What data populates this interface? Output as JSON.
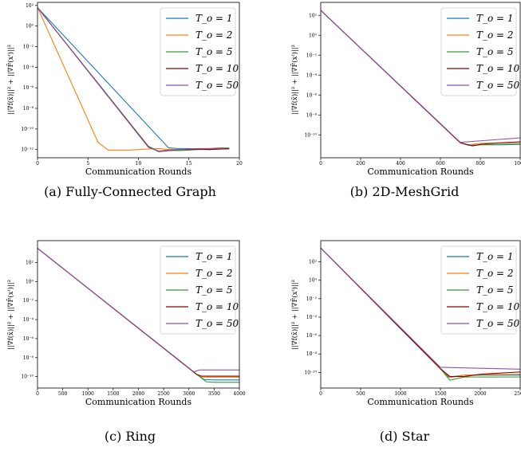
{
  "figure": {
    "colors": {
      "To=1": "#1f77b4",
      "To=2": "#ff7f0e",
      "To=5": "#2ca02c",
      "To=10": "#8b0000",
      "To=50": "#8c55a8"
    }
  },
  "chart_data": [
    {
      "type": "line",
      "caption": "(a) Fully-Connected Graph",
      "xlabel": "Communication Rounds",
      "ylabel": "||∇f(x̄)||² + ||∇F̄(xᵗ)||²",
      "xlim": [
        0,
        20
      ],
      "ylim_log10": [
        -12.8,
        2.3
      ],
      "xticks": [
        0,
        5,
        10,
        15,
        20
      ],
      "yticks_exp": [
        2,
        0,
        -2,
        -4,
        -6,
        -8,
        -10,
        -12
      ],
      "legend": "top-right",
      "series": [
        {
          "name": "To=1",
          "label": "T_o = 1",
          "x": [
            0,
            13,
            14,
            15,
            16,
            17,
            18,
            19
          ],
          "y_log10": [
            1.8,
            -11.85,
            -11.9,
            -11.9,
            -11.95,
            -11.9,
            -11.95,
            -11.9
          ]
        },
        {
          "name": "To=2",
          "label": "T_o = 2",
          "x": [
            0,
            6,
            7,
            8,
            9,
            10,
            12,
            13,
            14,
            16,
            18,
            19
          ],
          "y_log10": [
            1.8,
            -11.3,
            -12.05,
            -12.05,
            -12.05,
            -12.0,
            -11.9,
            -12.0,
            -12.0,
            -11.95,
            -11.95,
            -11.9
          ]
        },
        {
          "name": "To=5",
          "label": "T_o = 5",
          "x": [
            0,
            11,
            12,
            13,
            14,
            15,
            16,
            17,
            18,
            19
          ],
          "y_log10": [
            1.8,
            -11.7,
            -12.15,
            -12.1,
            -12.1,
            -12.05,
            -12.0,
            -12.0,
            -11.95,
            -11.95
          ]
        },
        {
          "name": "To=10",
          "label": "T_o = 10",
          "x": [
            0,
            11,
            12,
            13,
            14,
            15,
            16,
            17,
            18,
            19
          ],
          "y_log10": [
            1.8,
            -11.75,
            -12.2,
            -12.1,
            -12.0,
            -12.0,
            -11.95,
            -12.0,
            -11.95,
            -11.9
          ]
        },
        {
          "name": "To=50",
          "label": "T_o = 50",
          "x": [
            0,
            11,
            12,
            13,
            14,
            15,
            16,
            17,
            18,
            19
          ],
          "y_log10": [
            1.8,
            -11.8,
            -12.15,
            -12.05,
            -12.0,
            -11.95,
            -11.9,
            -11.9,
            -11.85,
            -11.85
          ]
        }
      ]
    },
    {
      "type": "line",
      "caption": "(b) 2D-MeshGrid",
      "xlabel": "Communication Rounds",
      "ylabel": "||∇f(x̄)||² + ||∇F̄(xᵗ)||²",
      "xlim": [
        0,
        1000
      ],
      "ylim_log10": [
        -12.3,
        3.3
      ],
      "xticks": [
        0,
        200,
        400,
        600,
        800,
        1000
      ],
      "yticks_exp": [
        2,
        0,
        -2,
        -4,
        -6,
        -8,
        -10
      ],
      "legend": "top-right",
      "series": [
        {
          "name": "To=1",
          "label": "T_o = 1",
          "x": [
            0,
            700,
            740,
            800,
            900,
            1000
          ],
          "y_log10": [
            2.5,
            -10.8,
            -11.05,
            -11.0,
            -11.0,
            -10.95
          ]
        },
        {
          "name": "To=2",
          "label": "T_o = 2",
          "x": [
            0,
            700,
            740,
            800,
            900,
            1000
          ],
          "y_log10": [
            2.5,
            -10.8,
            -11.0,
            -10.85,
            -10.8,
            -10.75
          ]
        },
        {
          "name": "To=5",
          "label": "T_o = 5",
          "x": [
            0,
            700,
            760,
            800,
            900,
            1000
          ],
          "y_log10": [
            2.5,
            -10.8,
            -11.1,
            -11.0,
            -10.95,
            -10.9
          ]
        },
        {
          "name": "To=10",
          "label": "T_o = 10",
          "x": [
            0,
            700,
            760,
            800,
            900,
            1000
          ],
          "y_log10": [
            2.5,
            -10.8,
            -11.1,
            -10.95,
            -10.8,
            -10.7
          ]
        },
        {
          "name": "To=50",
          "label": "T_o = 50",
          "x": [
            0,
            700,
            800,
            900,
            1000
          ],
          "y_log10": [
            2.5,
            -10.75,
            -10.6,
            -10.45,
            -10.3
          ]
        }
      ]
    },
    {
      "type": "line",
      "caption": "(c) Ring",
      "xlabel": "Communication Rounds",
      "ylabel": "||∇f(x̄)||² + ||∇F̄(xᵗ)||²",
      "xlim": [
        0,
        4000
      ],
      "ylim_log10": [
        -11.2,
        4.3
      ],
      "xticks": [
        0,
        500,
        1000,
        1500,
        2000,
        2500,
        3000,
        3500,
        4000
      ],
      "yticks_exp": [
        2,
        0,
        -2,
        -4,
        -6,
        -8,
        -10
      ],
      "legend": "top-right",
      "series": [
        {
          "name": "To=1",
          "label": "T_o = 1",
          "x": [
            0,
            3150,
            3300,
            3500,
            4000
          ],
          "y_log10": [
            3.5,
            -9.75,
            -10.3,
            -10.35,
            -10.35
          ]
        },
        {
          "name": "To=2",
          "label": "T_o = 2",
          "x": [
            0,
            3150,
            3250,
            3500,
            4000
          ],
          "y_log10": [
            3.5,
            -9.75,
            -10.05,
            -10.05,
            -10.05
          ]
        },
        {
          "name": "To=5",
          "label": "T_o = 5",
          "x": [
            0,
            3150,
            3350,
            3500,
            4000
          ],
          "y_log10": [
            3.5,
            -9.75,
            -10.55,
            -10.6,
            -10.6
          ]
        },
        {
          "name": "To=10",
          "label": "T_o = 10",
          "x": [
            0,
            3150,
            3250,
            3500,
            4000
          ],
          "y_log10": [
            3.5,
            -9.75,
            -9.95,
            -9.95,
            -9.95
          ]
        },
        {
          "name": "To=50",
          "label": "T_o = 50",
          "x": [
            0,
            3100,
            3200,
            3500,
            4000
          ],
          "y_log10": [
            3.5,
            -9.5,
            -9.3,
            -9.3,
            -9.3
          ]
        }
      ]
    },
    {
      "type": "line",
      "caption": "(d) Star",
      "xlabel": "Communication Rounds",
      "ylabel": "||∇f(x̄)||² + ||∇F̄(xᵗ)||²",
      "xlim": [
        0,
        2500
      ],
      "ylim_log10": [
        -11.7,
        4.3
      ],
      "xticks": [
        0,
        500,
        1000,
        1500,
        2000,
        2500
      ],
      "yticks_exp": [
        2,
        0,
        -2,
        -4,
        -6,
        -8,
        -10
      ],
      "legend": "top-right",
      "series": [
        {
          "name": "To=1",
          "label": "T_o = 1",
          "x": [
            0,
            1500,
            1600,
            1800,
            2000,
            2500
          ],
          "y_log10": [
            3.5,
            -9.6,
            -10.5,
            -10.3,
            -10.3,
            -10.3
          ]
        },
        {
          "name": "To=2",
          "label": "T_o = 2",
          "x": [
            0,
            1500,
            1620,
            1800,
            2000,
            2500
          ],
          "y_log10": [
            3.5,
            -9.6,
            -10.55,
            -10.3,
            -10.25,
            -10.2
          ]
        },
        {
          "name": "To=5",
          "label": "T_o = 5",
          "x": [
            0,
            1500,
            1620,
            1800,
            2000,
            2500
          ],
          "y_log10": [
            3.5,
            -9.6,
            -10.85,
            -10.5,
            -10.5,
            -10.5
          ]
        },
        {
          "name": "To=10",
          "label": "T_o = 10",
          "x": [
            0,
            1500,
            1620,
            1800,
            2000,
            2500
          ],
          "y_log10": [
            3.5,
            -9.6,
            -10.45,
            -10.45,
            -10.2,
            -9.95
          ]
        },
        {
          "name": "To=50",
          "label": "T_o = 50",
          "x": [
            0,
            1500,
            2000,
            2500
          ],
          "y_log10": [
            3.5,
            -9.45,
            -9.55,
            -9.65
          ]
        }
      ]
    }
  ]
}
